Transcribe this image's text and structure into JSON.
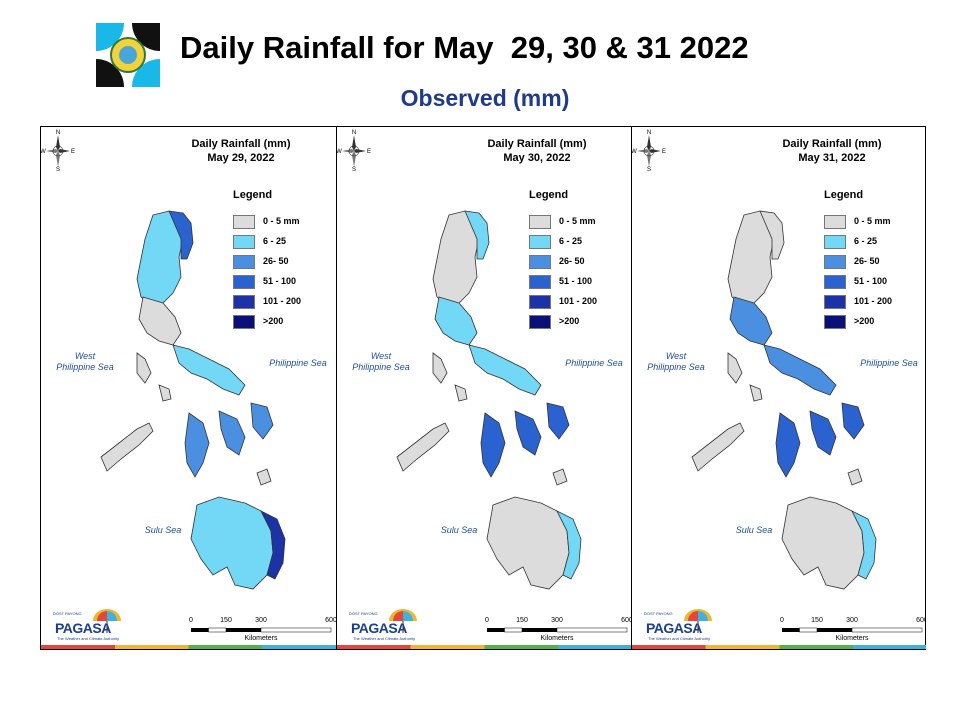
{
  "header": {
    "title": "Daily Rainfall for May  29, 30 & 31 2022",
    "subtitle": "Observed (mm)"
  },
  "legend": {
    "title": "Legend",
    "classes": [
      {
        "label": "0 - 5 mm",
        "color": "#dcdcdc"
      },
      {
        "label": "6 - 25",
        "color": "#72d8f5"
      },
      {
        "label": "26- 50",
        "color": "#4a8fe0"
      },
      {
        "label": "51 - 100",
        "color": "#2a63cf"
      },
      {
        "label": "101 - 200",
        "color": "#1c32a6"
      },
      {
        "label": ">200",
        "color": "#0b0f7a"
      }
    ]
  },
  "seas": {
    "west": "West\nPhilippine Sea",
    "east": "Philippine Sea",
    "sulu": "Sulu Sea"
  },
  "compass": {
    "n": "N",
    "s": "S",
    "e": "E",
    "w": "W"
  },
  "scale": {
    "ticks": [
      "0",
      "150",
      "300",
      "600"
    ],
    "unit": "Kilometers"
  },
  "branding": {
    "name": "PAGASA",
    "prefix": "DOST PAYONG",
    "tagline": "The Weather and Climate Authority"
  },
  "panels": [
    {
      "title": "Daily Rainfall (mm)",
      "date": "May 29, 2022",
      "rainfall": {
        "north_luzon": "6 - 25",
        "ne_luzon": "51 - 100",
        "central_luzon": "0 - 5 mm",
        "southern_luzon": "6 - 25",
        "visayas": "26- 50",
        "mindanao": "6 - 25",
        "east_mindanao": "101 - 200"
      }
    },
    {
      "title": "Daily Rainfall (mm)",
      "date": "May 30, 2022",
      "rainfall": {
        "north_luzon": "0 - 5 mm",
        "ne_luzon": "6 - 25",
        "central_luzon": "6 - 25",
        "southern_luzon": "6 - 25",
        "visayas": "51 - 100",
        "mindanao": "0 - 5 mm",
        "east_mindanao": "6 - 25"
      }
    },
    {
      "title": "Daily Rainfall (mm)",
      "date": "May 31, 2022",
      "rainfall": {
        "north_luzon": "0 - 5 mm",
        "ne_luzon": "0 - 5 mm",
        "central_luzon": "26- 50",
        "southern_luzon": "26- 50",
        "visayas": "51 - 100",
        "mindanao": "0 - 5 mm",
        "east_mindanao": "6 - 25"
      }
    }
  ]
}
